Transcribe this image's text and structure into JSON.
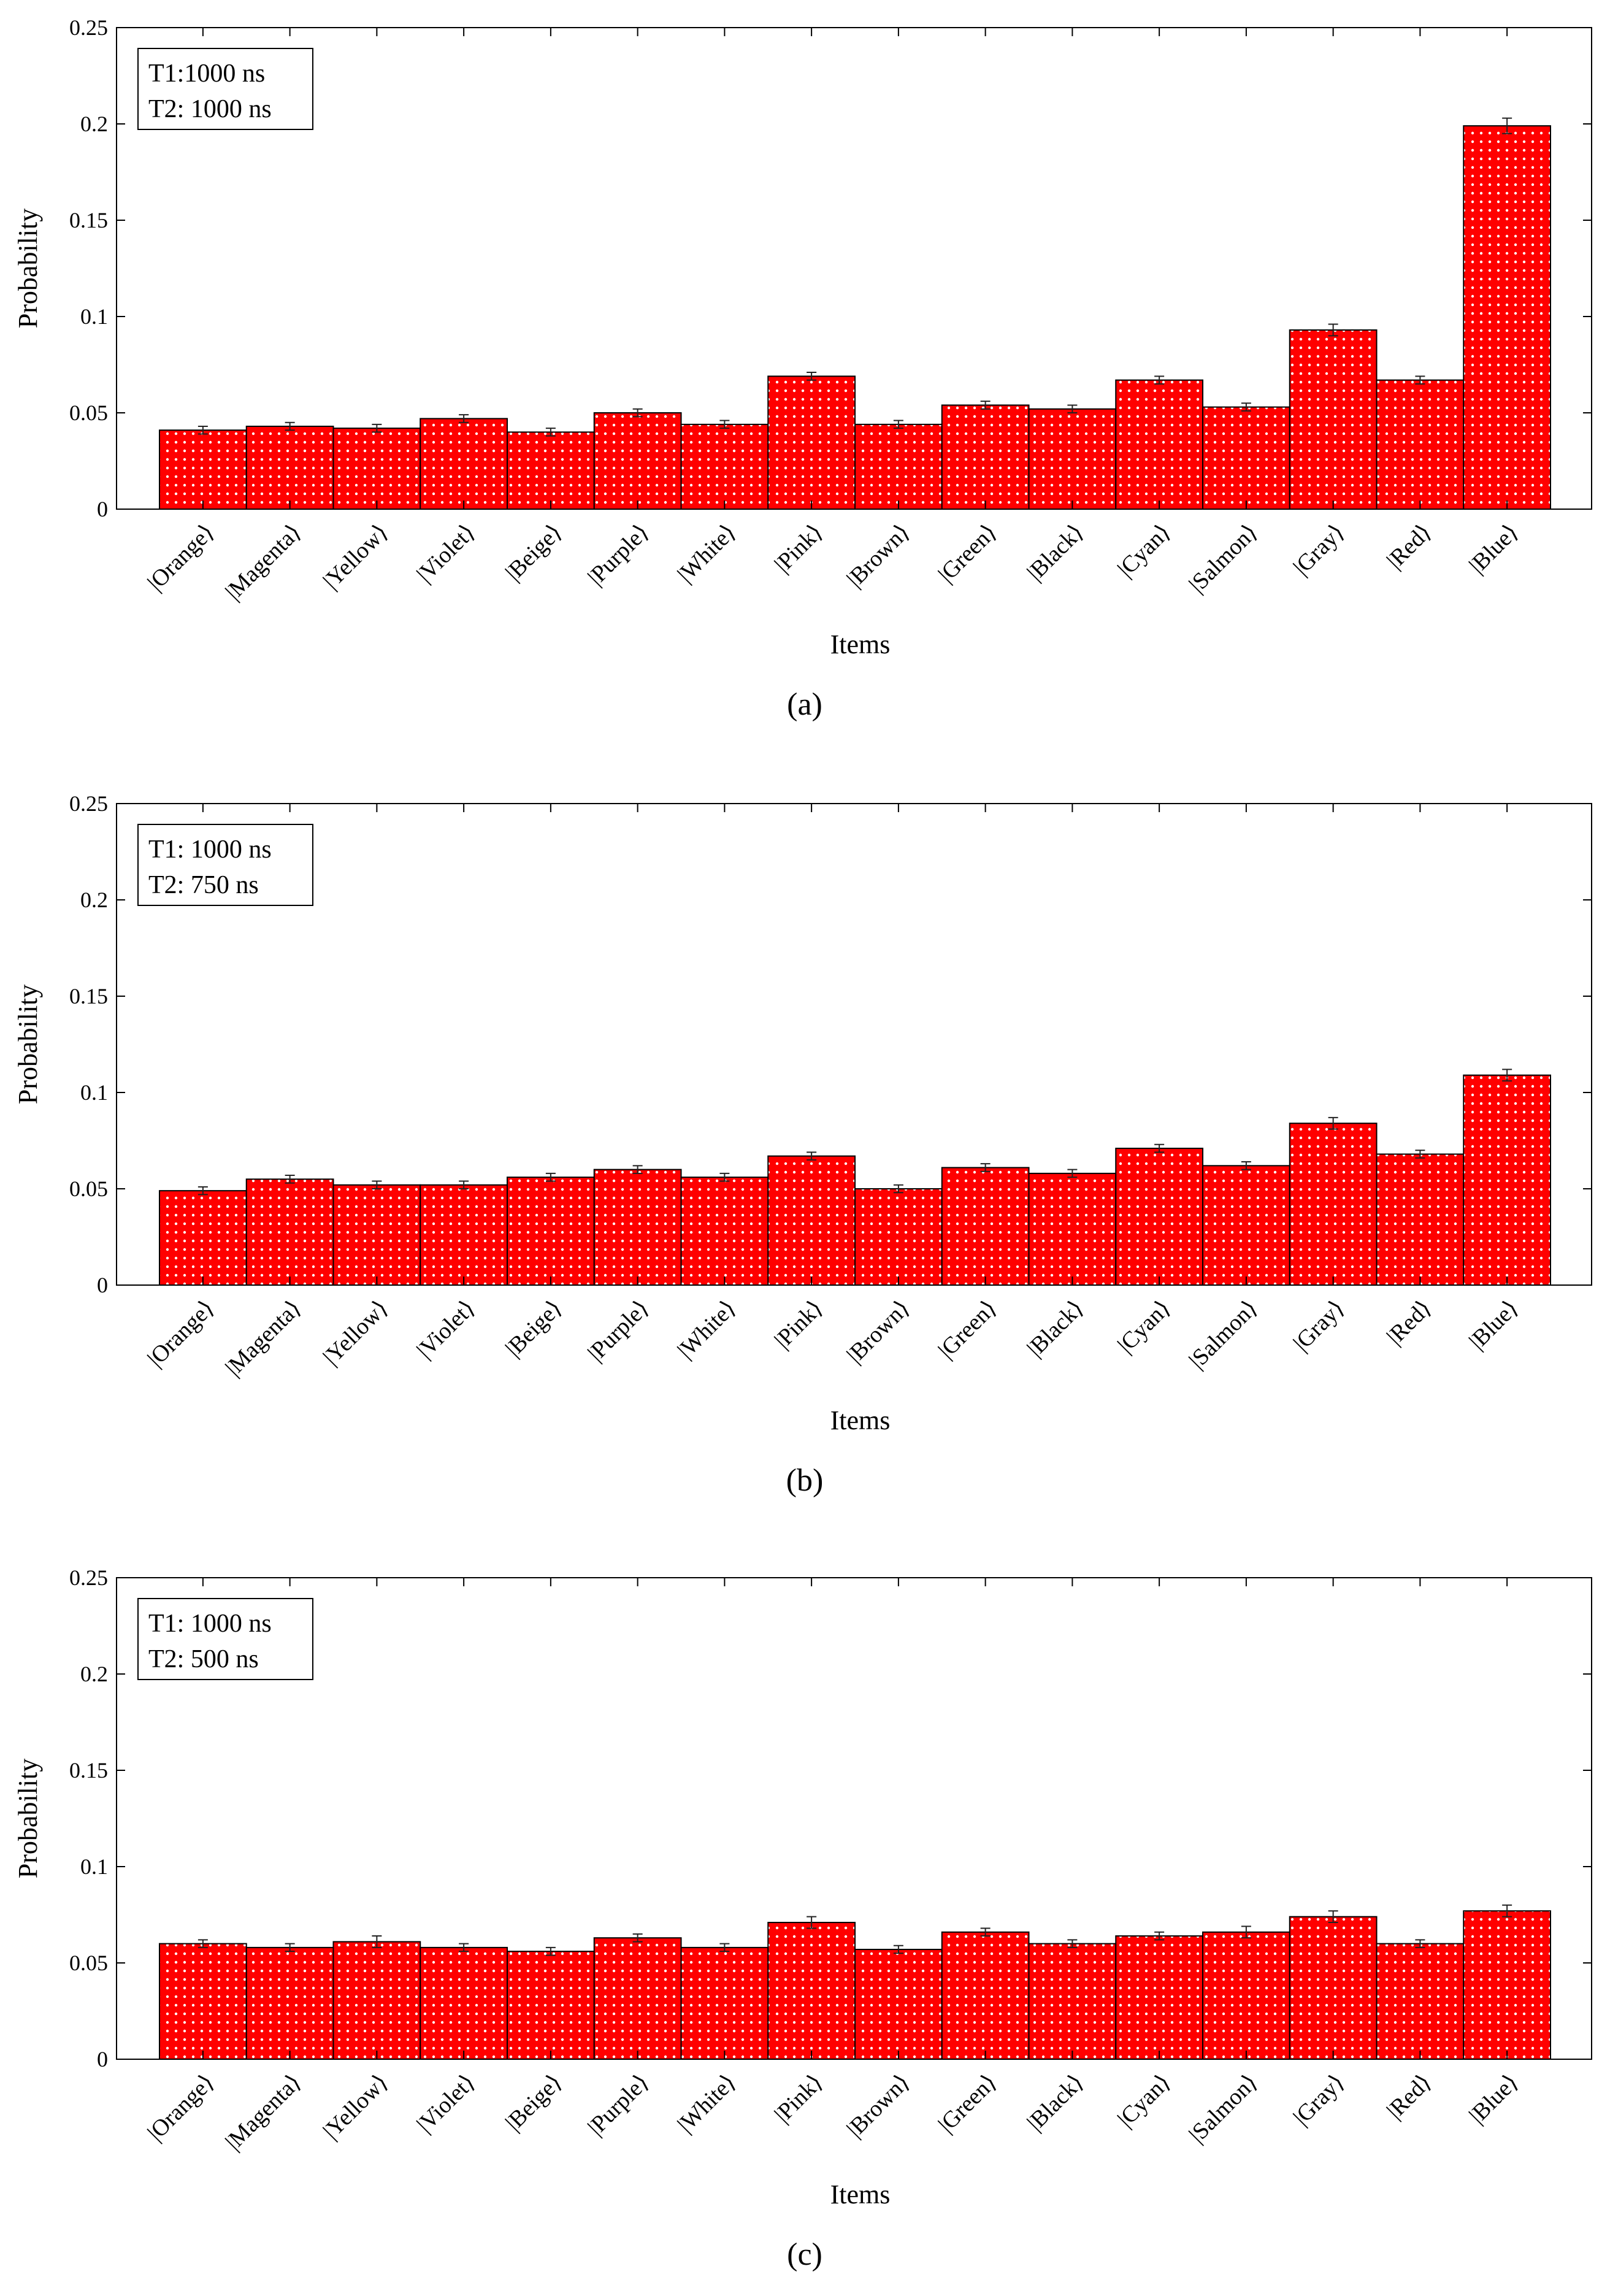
{
  "figure": {
    "colors": {
      "bar": "#ff0000",
      "dots": "#ffffff",
      "axis": "#000000",
      "error": "#222222"
    }
  },
  "chart_data": [
    {
      "type": "bar",
      "panel_label": "(a)",
      "legend": [
        "T1:1000 ns",
        "T2: 1000 ns"
      ],
      "xlabel": "Items",
      "ylabel": "Probability",
      "ylim": [
        0,
        0.25
      ],
      "yticks": [
        "0",
        "0.05",
        "0.1",
        "0.15",
        "0.2",
        "0.25"
      ],
      "categories": [
        "|Orange⟩",
        "|Magenta⟩",
        "|Yellow⟩",
        "|Violet⟩",
        "|Beige⟩",
        "|Purple⟩",
        "|White⟩",
        "|Pink⟩",
        "|Brown⟩",
        "|Green⟩",
        "|Black⟩",
        "|Cyan⟩",
        "|Salmon⟩",
        "|Gray⟩",
        "|Red⟩",
        "|Blue⟩"
      ],
      "values": [
        0.041,
        0.043,
        0.042,
        0.047,
        0.04,
        0.05,
        0.044,
        0.069,
        0.044,
        0.054,
        0.052,
        0.067,
        0.053,
        0.093,
        0.067,
        0.199
      ],
      "errors": [
        0.002,
        0.002,
        0.002,
        0.002,
        0.002,
        0.002,
        0.002,
        0.002,
        0.002,
        0.002,
        0.002,
        0.002,
        0.002,
        0.003,
        0.002,
        0.004
      ]
    },
    {
      "type": "bar",
      "panel_label": "(b)",
      "legend": [
        "T1: 1000 ns",
        "T2: 750 ns"
      ],
      "xlabel": "Items",
      "ylabel": "Probability",
      "ylim": [
        0,
        0.25
      ],
      "yticks": [
        "0",
        "0.05",
        "0.1",
        "0.15",
        "0.2",
        "0.25"
      ],
      "categories": [
        "|Orange⟩",
        "|Magenta⟩",
        "|Yellow⟩",
        "|Violet⟩",
        "|Beige⟩",
        "|Purple⟩",
        "|White⟩",
        "|Pink⟩",
        "|Brown⟩",
        "|Green⟩",
        "|Black⟩",
        "|Cyan⟩",
        "|Salmon⟩",
        "|Gray⟩",
        "|Red⟩",
        "|Blue⟩"
      ],
      "values": [
        0.049,
        0.055,
        0.052,
        0.052,
        0.056,
        0.06,
        0.056,
        0.067,
        0.05,
        0.061,
        0.058,
        0.071,
        0.062,
        0.084,
        0.068,
        0.109
      ],
      "errors": [
        0.002,
        0.002,
        0.002,
        0.002,
        0.002,
        0.002,
        0.002,
        0.002,
        0.002,
        0.002,
        0.002,
        0.002,
        0.002,
        0.003,
        0.002,
        0.003
      ]
    },
    {
      "type": "bar",
      "panel_label": "(c)",
      "legend": [
        "T1: 1000 ns",
        "T2: 500 ns"
      ],
      "xlabel": "Items",
      "ylabel": "Probability",
      "ylim": [
        0,
        0.25
      ],
      "yticks": [
        "0",
        "0.05",
        "0.1",
        "0.15",
        "0.2",
        "0.25"
      ],
      "categories": [
        "|Orange⟩",
        "|Magenta⟩",
        "|Yellow⟩",
        "|Violet⟩",
        "|Beige⟩",
        "|Purple⟩",
        "|White⟩",
        "|Pink⟩",
        "|Brown⟩",
        "|Green⟩",
        "|Black⟩",
        "|Cyan⟩",
        "|Salmon⟩",
        "|Gray⟩",
        "|Red⟩",
        "|Blue⟩"
      ],
      "values": [
        0.06,
        0.058,
        0.061,
        0.058,
        0.056,
        0.063,
        0.058,
        0.071,
        0.057,
        0.066,
        0.06,
        0.064,
        0.066,
        0.074,
        0.06,
        0.077
      ],
      "errors": [
        0.002,
        0.002,
        0.003,
        0.002,
        0.002,
        0.002,
        0.002,
        0.003,
        0.002,
        0.002,
        0.002,
        0.002,
        0.003,
        0.003,
        0.002,
        0.003
      ]
    }
  ]
}
